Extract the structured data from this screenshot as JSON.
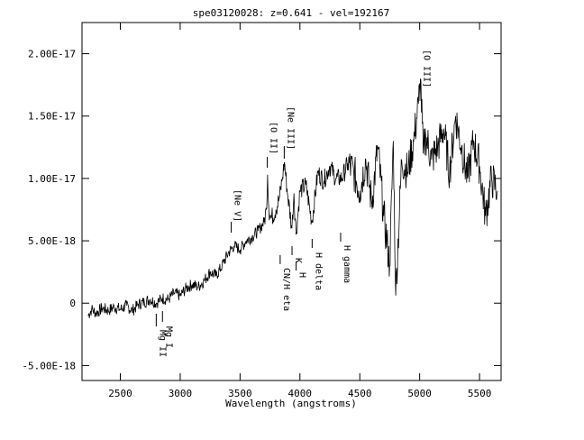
{
  "chart_data": {
    "type": "line",
    "title": "spe03120028: z=0.641 - vel=192167",
    "xlabel": "Wavelength (angstroms)",
    "ylabel": "",
    "xlim": [
      2180,
      5680
    ],
    "ylim": [
      -6.2e-18,
      2.25e-17
    ],
    "x_ticks": [
      2500,
      3000,
      3500,
      4000,
      4500,
      5000,
      5500
    ],
    "x_tick_labels": [
      "2500",
      "3000",
      "3500",
      "4000",
      "4500",
      "5000",
      "5500"
    ],
    "y_ticks": [
      -5e-18,
      0,
      5e-18,
      1e-17,
      1.5e-17,
      2e-17
    ],
    "y_tick_labels": [
      "-5.00E-18",
      "0",
      "5.00E-18",
      "1.00E-17",
      "1.50E-17",
      "2.00E-17"
    ],
    "series": [
      {
        "x": [
          2230,
          2260,
          2300,
          2350,
          2400,
          2450,
          2500,
          2550,
          2600,
          2650,
          2700,
          2750,
          2800,
          2850,
          2900,
          2950,
          3000,
          3050,
          3100,
          3150,
          3200,
          3250,
          3300,
          3350,
          3400,
          3450,
          3500,
          3550,
          3600,
          3650,
          3700,
          3720,
          3730,
          3740,
          3760,
          3800,
          3830,
          3850,
          3870,
          3900,
          3933,
          3950,
          3968,
          4000,
          4050,
          4100,
          4150,
          4200,
          4250,
          4300,
          4350,
          4400,
          4450,
          4500,
          4550,
          4600,
          4650,
          4700,
          4750,
          4780,
          4800,
          4850,
          4900,
          4950,
          4990,
          5007,
          5030,
          5050,
          5100,
          5150,
          5200,
          5250,
          5300,
          5350,
          5400,
          5450,
          5500,
          5550,
          5600,
          5650
        ],
        "y": [
          -1e-18,
          -5e-19,
          -8e-19,
          -4e-19,
          -6e-19,
          -3e-19,
          -5e-19,
          -2e-19,
          -6e-19,
          -1e-19,
          1e-19,
          3e-19,
          0,
          4e-19,
          3e-19,
          8e-19,
          6e-19,
          1.2e-18,
          1.5e-18,
          1.3e-18,
          1.8e-18,
          2.5e-18,
          2.2e-18,
          3e-18,
          4e-18,
          4.6e-18,
          4.3e-18,
          5e-18,
          5.3e-18,
          5.8e-18,
          6.5e-18,
          7.5e-18,
          1.03e-17,
          7.5e-18,
          6.8e-18,
          7.5e-18,
          8.5e-18,
          9.8e-18,
          1.13e-17,
          8.5e-18,
          6e-18,
          8.8e-18,
          5.5e-18,
          9e-18,
          9.5e-18,
          6.5e-18,
          1.05e-17,
          9.8e-18,
          1.1e-17,
          1e-17,
          1e-17,
          1.12e-17,
          1.05e-17,
          9e-18,
          1.15e-17,
          8e-18,
          1.25e-17,
          7e-18,
          3e-18,
          1.3e-17,
          6e-19,
          1.15e-17,
          1.05e-17,
          1.3e-17,
          1.6e-17,
          1.8e-17,
          1.2e-17,
          1.35e-17,
          1.15e-17,
          1.25e-17,
          1.4e-17,
          1.05e-17,
          1.5e-17,
          1.25e-17,
          1e-17,
          1.3e-17,
          1.1e-17,
          7e-18,
          1e-17,
          9e-18
        ]
      }
    ],
    "lines": [
      {
        "label": "[O III]",
        "x": 5007
      },
      {
        "label": "[Ne III]",
        "x": 3869
      },
      {
        "label": "[O II]",
        "x": 3727
      },
      {
        "label": "[Ne V]",
        "x": 3426
      },
      {
        "label": "K",
        "x": 3934
      },
      {
        "label": "H",
        "x": 3968
      },
      {
        "label": "CN/H eta",
        "x": 3835
      },
      {
        "label": "H delta",
        "x": 4102
      },
      {
        "label": "H gamma",
        "x": 4340
      },
      {
        "label": "Mg I",
        "x": 2852
      },
      {
        "label": "Mg II",
        "x": 2800
      }
    ]
  }
}
